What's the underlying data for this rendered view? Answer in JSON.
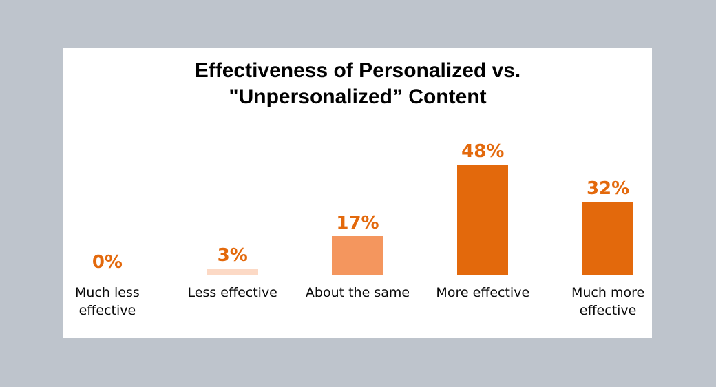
{
  "chart_data": {
    "type": "bar",
    "title": "Effectiveness of Personalized vs. \"Unpersonalized” Content",
    "categories": [
      "Much less effective",
      "Less effective",
      "About the same",
      "More effective",
      "Much more effective"
    ],
    "values": [
      0,
      3,
      17,
      48,
      32
    ],
    "value_labels": [
      "0%",
      "3%",
      "17%",
      "48%",
      "32%"
    ],
    "unit": "%",
    "ylim": [
      0,
      50
    ],
    "grid": false,
    "legend": false,
    "axes_hidden": true,
    "bar_colors": [
      null,
      "#fcd9c5",
      "#f4965e",
      "#e3690c",
      "#e3690c"
    ],
    "value_label_color": "#e3690c",
    "category_text_color": "#0a0a0a",
    "title_color": "#000000",
    "card_background": "#ffffff",
    "page_background": "#bec4cc"
  }
}
